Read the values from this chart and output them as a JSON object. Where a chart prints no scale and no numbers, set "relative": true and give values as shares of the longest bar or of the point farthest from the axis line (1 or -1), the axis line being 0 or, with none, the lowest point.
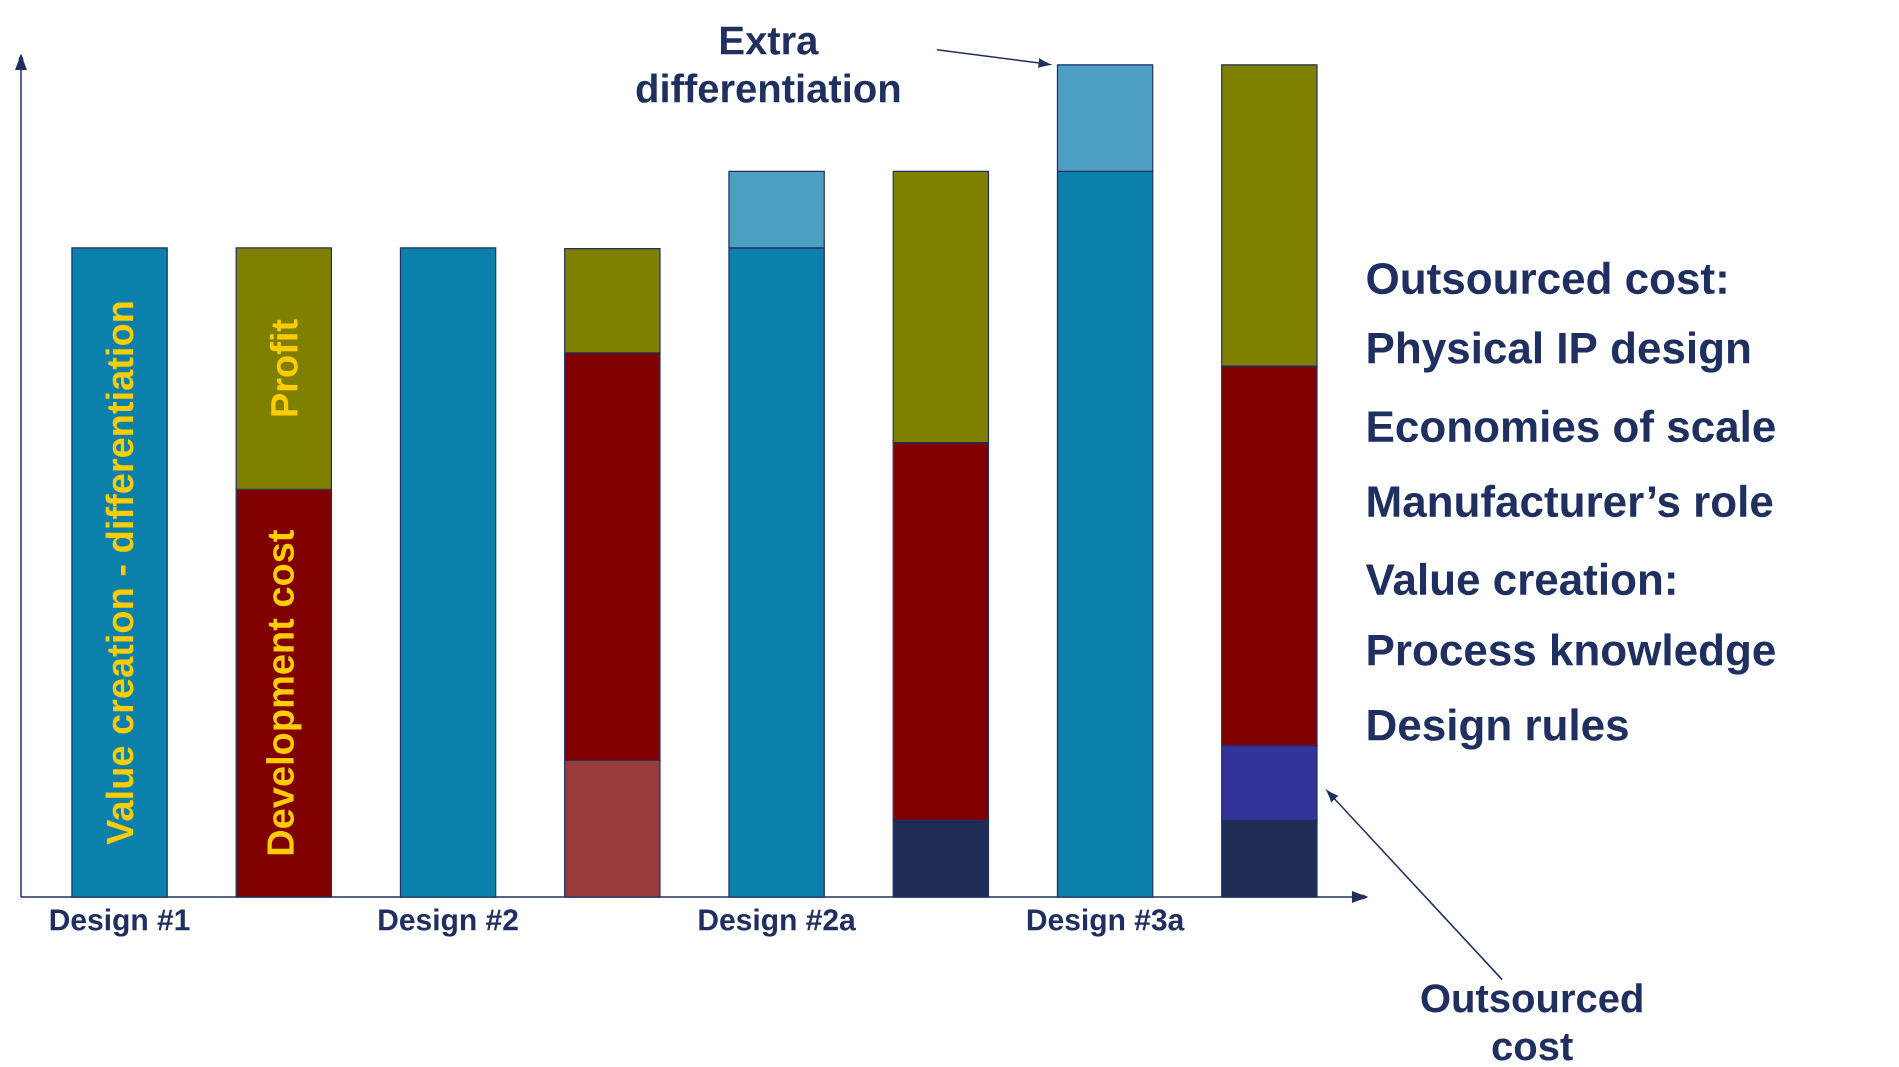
{
  "chart_data": [
    {
      "type": "bar",
      "stacked": true,
      "relative": true,
      "categories": [
        "Design #1",
        null,
        "Design #2",
        null,
        "Design #2a",
        null,
        "Design #3a",
        null
      ],
      "series": [
        {
          "name": "Value creation - differentiation",
          "color": "#0a80ab",
          "values": [
            0.78,
            null,
            0.78,
            null,
            0.78,
            null,
            0.872,
            null
          ]
        },
        {
          "color": "#4d9fc1",
          "values": [
            null,
            null,
            null,
            null,
            0.092,
            null,
            0.128,
            null
          ]
        },
        {
          "color": "#1f2d55",
          "values": [
            null,
            null,
            null,
            null,
            null,
            0.092,
            null,
            0.092
          ]
        },
        {
          "color": "#333399",
          "values": [
            null,
            null,
            null,
            null,
            null,
            null,
            null,
            0.09
          ]
        },
        {
          "color": "#9a3a3a",
          "values": [
            null,
            null,
            null,
            0.164,
            null,
            null,
            null,
            null
          ]
        },
        {
          "name": "Development cost",
          "color": "#800000",
          "values": [
            null,
            0.49,
            null,
            0.49,
            null,
            0.454,
            null,
            0.456
          ]
        },
        {
          "name": "Profit",
          "color": "#808000",
          "values": [
            null,
            0.29,
            null,
            0.125,
            null,
            0.326,
            null,
            0.362
          ]
        }
      ],
      "annotations": [
        "Extra differentiation",
        "Outsourced cost"
      ]
    },
    {
      "type": "other",
      "annotations": [
        "Outsourced cost:",
        "Physical IP design",
        "Economies of scale",
        "Manufacturer’s role",
        "Value creation:",
        "Process knowledge",
        "Design rules"
      ]
    }
  ]
}
